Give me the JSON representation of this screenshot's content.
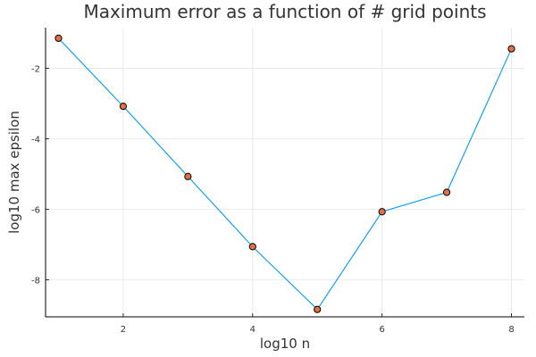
{
  "chart_data": {
    "type": "line",
    "title": "Maximum error as a function of # grid points",
    "xlabel": "log10 n",
    "ylabel": "log10 max epsilon",
    "xlim": [
      0.8,
      8.2
    ],
    "ylim": [
      -9.05,
      -0.85
    ],
    "x_ticks": [
      2,
      4,
      6,
      8
    ],
    "x_tick_labels": [
      "2",
      "4",
      "6",
      "8"
    ],
    "y_ticks": [
      -8,
      -6,
      -4,
      -2
    ],
    "y_tick_labels": [
      "-8",
      "-6",
      "-4",
      "-2"
    ],
    "grid": true,
    "legend": "none",
    "series": [
      {
        "name": "y1",
        "x": [
          1,
          2,
          3,
          4,
          5,
          6,
          7,
          8
        ],
        "values": [
          -1.15,
          -3.08,
          -5.07,
          -7.06,
          -8.84,
          -6.07,
          -5.52,
          -1.45
        ],
        "line_color": "#009af9",
        "marker_color": "#e26f46",
        "marker_edge_color": "#000000"
      }
    ]
  }
}
